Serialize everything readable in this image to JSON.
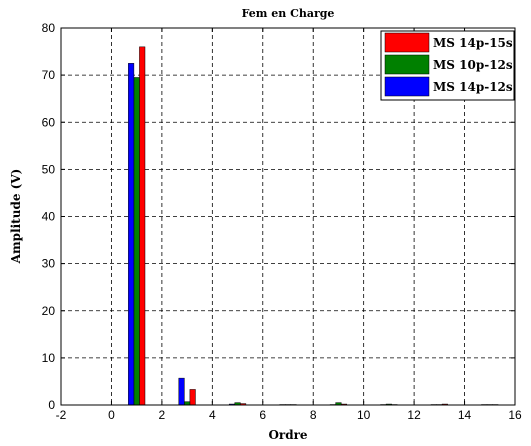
{
  "chart_data": {
    "type": "bar",
    "title": "Fem en Charge",
    "xlabel": "Ordre",
    "ylabel": "Amplitude (V)",
    "xlim": [
      -2,
      16
    ],
    "ylim": [
      0,
      80
    ],
    "xticks": [
      "-2",
      "0",
      "2",
      "4",
      "6",
      "8",
      "10",
      "12",
      "14",
      "16"
    ],
    "yticks": [
      "0",
      "10",
      "20",
      "30",
      "40",
      "50",
      "60",
      "70",
      "80"
    ],
    "grid": true,
    "legend_position": "top-right",
    "categories": [
      1,
      3,
      5,
      7,
      9,
      11,
      13,
      15
    ],
    "series": [
      {
        "name": "MS 14p-15s",
        "color": "#ff0000",
        "values": [
          76,
          3.3,
          0.3,
          0.1,
          0.2,
          0.1,
          0.2,
          0.1
        ]
      },
      {
        "name": "MS 10p-12s",
        "color": "#008000",
        "values": [
          69.5,
          0.7,
          0.5,
          0.1,
          0.5,
          0.2,
          0.1,
          0.1
        ]
      },
      {
        "name": "MS 14p-12s",
        "color": "#0000ff",
        "values": [
          72.5,
          5.7,
          0.2,
          0.1,
          0.1,
          0.1,
          0.1,
          0.1
        ]
      }
    ]
  }
}
